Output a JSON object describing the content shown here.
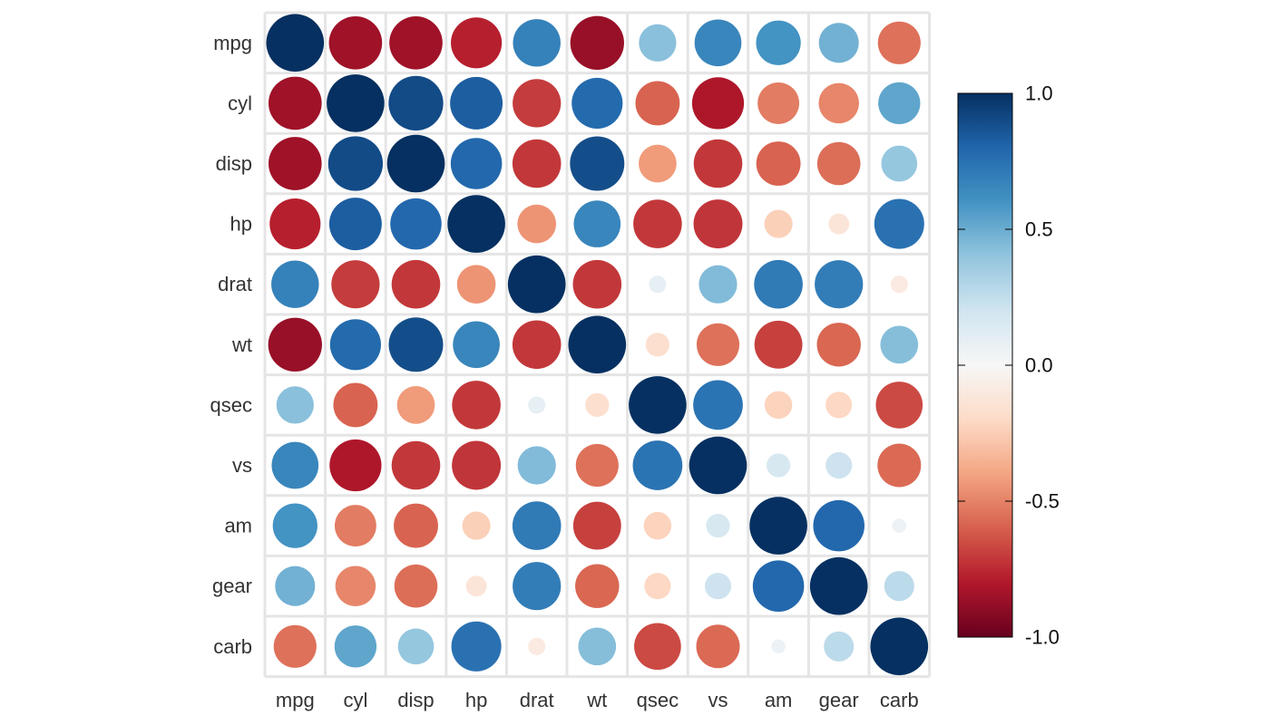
{
  "chart_data": {
    "type": "heatmap",
    "variables": [
      "mpg",
      "cyl",
      "disp",
      "hp",
      "drat",
      "wt",
      "qsec",
      "vs",
      "am",
      "gear",
      "carb"
    ],
    "matrix": [
      [
        1,
        -0.85,
        -0.85,
        -0.78,
        0.68,
        -0.87,
        0.42,
        0.66,
        0.6,
        0.48,
        -0.55
      ],
      [
        -0.85,
        1,
        0.9,
        0.83,
        -0.7,
        0.78,
        -0.59,
        -0.81,
        -0.52,
        -0.49,
        0.53
      ],
      [
        -0.85,
        0.9,
        1,
        0.79,
        -0.71,
        0.89,
        -0.43,
        -0.71,
        -0.59,
        -0.56,
        0.39
      ],
      [
        -0.78,
        0.83,
        0.79,
        1,
        -0.45,
        0.66,
        -0.71,
        -0.72,
        -0.24,
        -0.13,
        0.75
      ],
      [
        0.68,
        -0.7,
        -0.71,
        -0.45,
        1,
        -0.71,
        0.09,
        0.44,
        0.71,
        0.7,
        -0.09
      ],
      [
        -0.87,
        0.78,
        0.89,
        0.66,
        -0.71,
        1,
        -0.17,
        -0.55,
        -0.69,
        -0.58,
        0.43
      ],
      [
        0.42,
        -0.59,
        -0.43,
        -0.71,
        0.09,
        -0.17,
        1,
        0.74,
        -0.23,
        -0.21,
        -0.66
      ],
      [
        0.66,
        -0.81,
        -0.71,
        -0.72,
        0.44,
        -0.55,
        0.74,
        1,
        0.17,
        0.21,
        -0.57
      ],
      [
        0.6,
        -0.52,
        -0.59,
        -0.24,
        0.71,
        -0.69,
        -0.23,
        0.17,
        1,
        0.79,
        0.06
      ],
      [
        0.48,
        -0.49,
        -0.56,
        -0.13,
        0.7,
        -0.58,
        -0.21,
        0.21,
        0.79,
        1,
        0.27
      ],
      [
        -0.55,
        0.53,
        0.39,
        0.75,
        -0.09,
        0.43,
        -0.66,
        -0.57,
        0.06,
        0.27,
        1
      ]
    ],
    "value_range": [
      -1,
      1
    ],
    "colorbar": {
      "ticks": [
        1.0,
        0.5,
        0.0,
        -0.5,
        -1.0
      ],
      "tick_labels": [
        "1.0",
        "0.5",
        "0.0",
        "-0.5",
        "-1.0"
      ],
      "placement": "right"
    },
    "colors": {
      "negative_strong": "#67001f",
      "negative": "#b2182b",
      "negative_mid": "#d6604d",
      "negative_light": "#f4a582",
      "negative_pale": "#fddbc7",
      "neutral": "#f7f7f7",
      "positive_pale": "#d1e5f0",
      "positive_light": "#92c5de",
      "positive_mid": "#4393c3",
      "positive": "#2166ac",
      "positive_strong": "#053061",
      "grid": "#e5e5e5",
      "text": "#333333"
    },
    "grid": true
  }
}
